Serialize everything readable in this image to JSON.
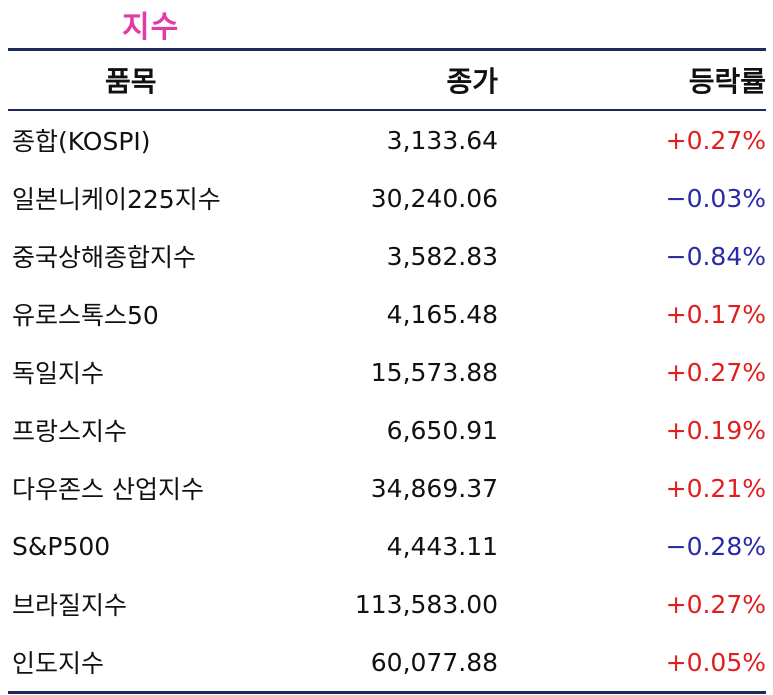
{
  "title": "지수",
  "headers": {
    "name": "품목",
    "price": "종가",
    "rate": "등락률"
  },
  "rows": [
    {
      "name": "종합(KOSPI)",
      "price": "3,133.64",
      "rate": "+0.27%",
      "dir": "up"
    },
    {
      "name": "일본니케이225지수",
      "price": "30,240.06",
      "rate": "−0.03%",
      "dir": "down"
    },
    {
      "name": "중국상해종합지수",
      "price": "3,582.83",
      "rate": "−0.84%",
      "dir": "down"
    },
    {
      "name": "유로스톡스50",
      "price": "4,165.48",
      "rate": "+0.17%",
      "dir": "up"
    },
    {
      "name": "독일지수",
      "price": "15,573.88",
      "rate": "+0.27%",
      "dir": "up"
    },
    {
      "name": "프랑스지수",
      "price": "6,650.91",
      "rate": "+0.19%",
      "dir": "up"
    },
    {
      "name": "다우존스 산업지수",
      "price": "34,869.37",
      "rate": "+0.21%",
      "dir": "up"
    },
    {
      "name": "S&P500",
      "price": "4,443.11",
      "rate": "−0.28%",
      "dir": "down"
    },
    {
      "name": "브라질지수",
      "price": "113,583.00",
      "rate": "+0.27%",
      "dir": "up"
    },
    {
      "name": "인도지수",
      "price": "60,077.88",
      "rate": "+0.05%",
      "dir": "up"
    }
  ],
  "colors": {
    "title": "#e23aa6",
    "up": "#e01e1e",
    "down": "#2a2aa8",
    "rule": "#1c2a5e"
  }
}
